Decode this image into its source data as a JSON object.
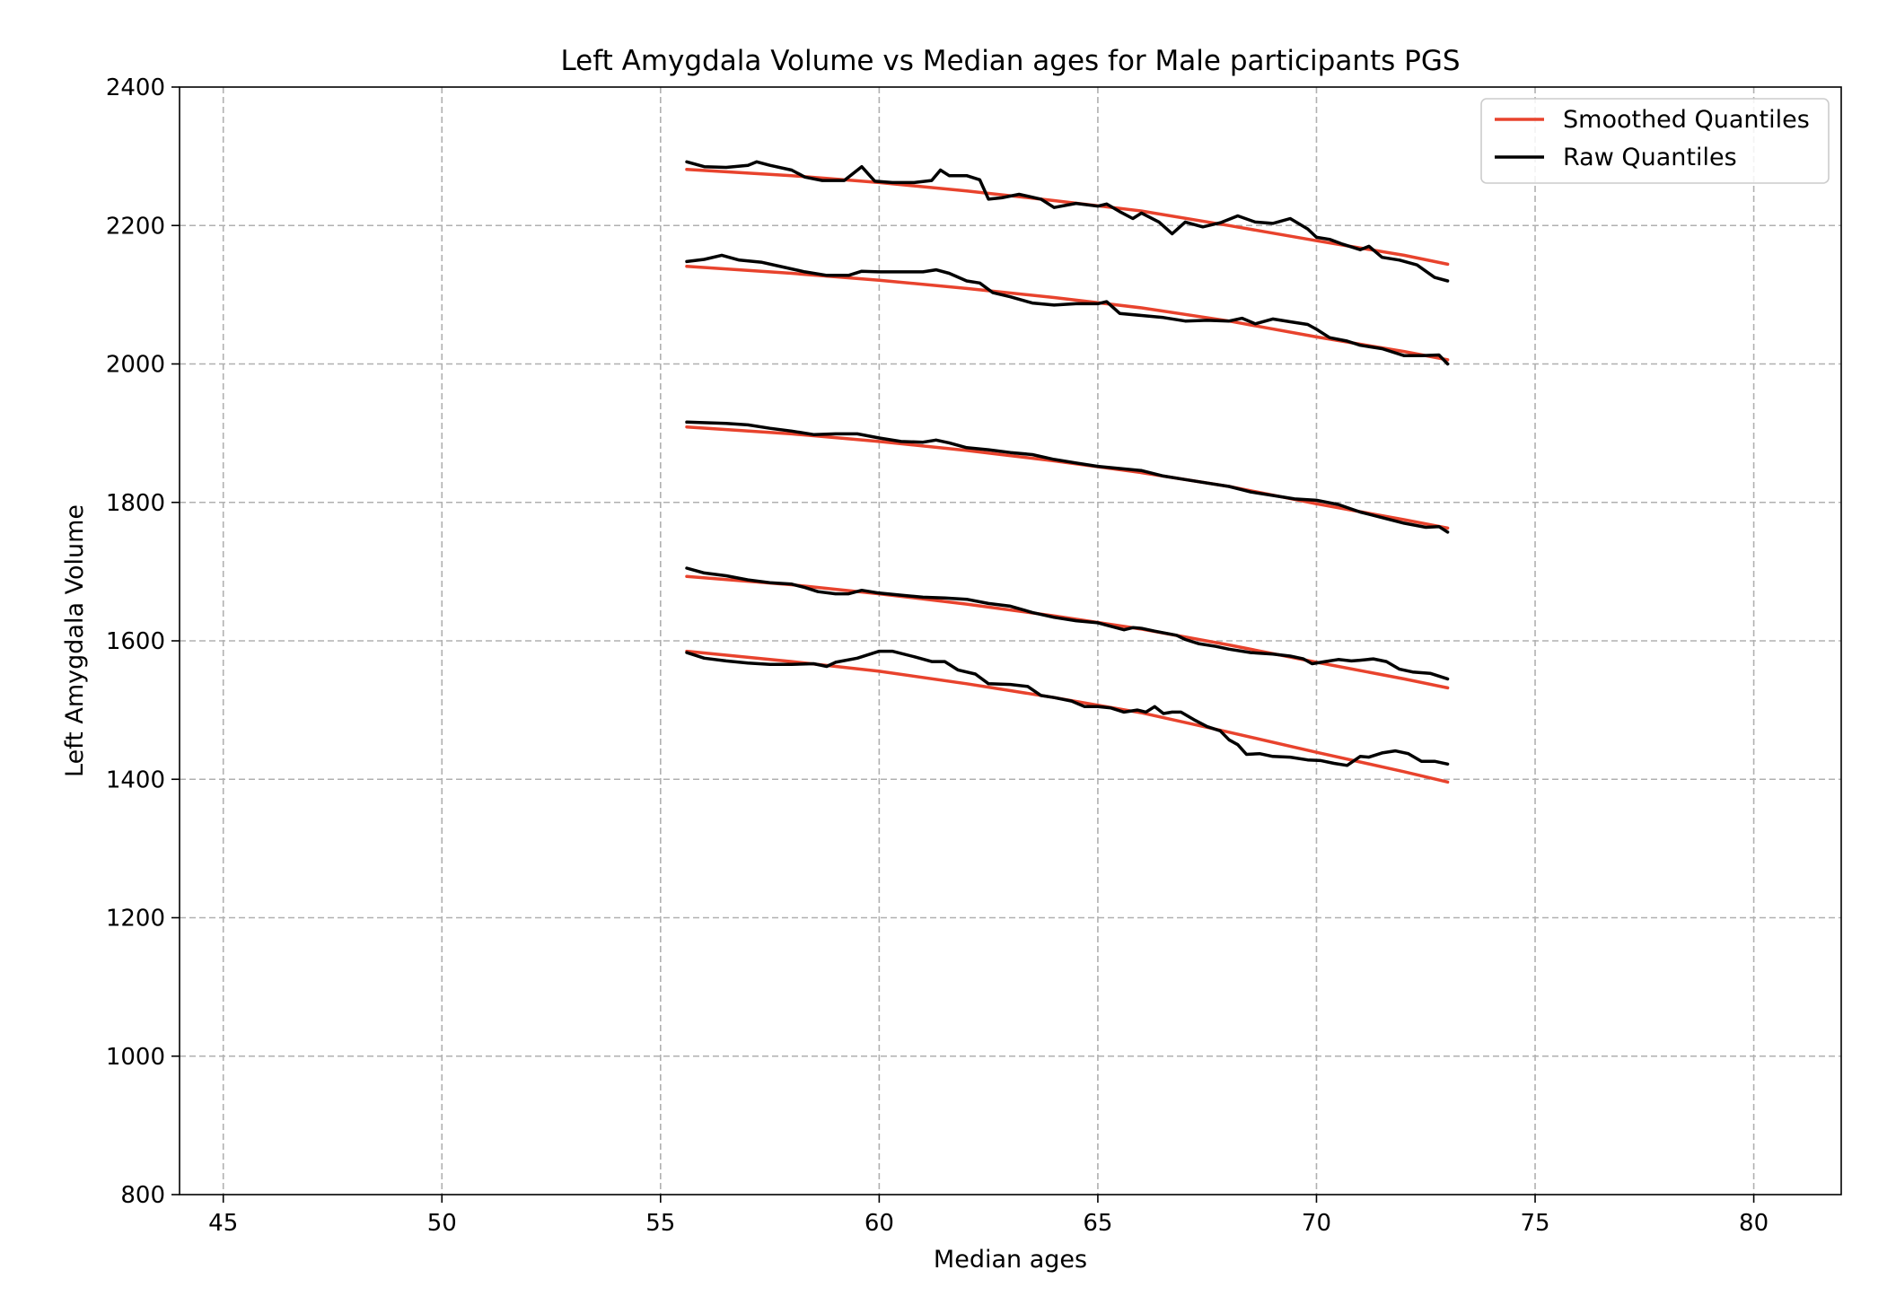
{
  "chart_data": {
    "type": "line",
    "title": "Left Amygdala Volume vs Median ages for Male participants  PGS",
    "xlabel": "Median ages",
    "ylabel": "Left Amygdala Volume",
    "xlim": [
      44,
      82
    ],
    "ylim": [
      800,
      2400
    ],
    "xticks": [
      45,
      50,
      55,
      60,
      65,
      70,
      75,
      80
    ],
    "yticks": [
      800,
      1000,
      1200,
      1400,
      1600,
      1800,
      2000,
      2200,
      2400
    ],
    "grid": true,
    "legend_position": "top-right",
    "legend": [
      {
        "label": "Smoothed Quantiles",
        "color": "#e8432d"
      },
      {
        "label": "Raw Quantiles",
        "color": "#000000"
      }
    ],
    "series": [
      {
        "group": "Smoothed Quantiles",
        "color": "#e8432d",
        "x": [
          55.6,
          58,
          60,
          62,
          64,
          66,
          68,
          70,
          72,
          73
        ],
        "y": [
          2281,
          2272,
          2262,
          2250,
          2236,
          2221,
          2200,
          2178,
          2157,
          2144
        ]
      },
      {
        "group": "Smoothed Quantiles",
        "color": "#e8432d",
        "x": [
          55.6,
          58,
          60,
          62,
          64,
          66,
          68,
          70,
          72,
          73
        ],
        "y": [
          2141,
          2131,
          2121,
          2109,
          2096,
          2081,
          2062,
          2039,
          2018,
          2006
        ]
      },
      {
        "group": "Smoothed Quantiles",
        "color": "#e8432d",
        "x": [
          55.6,
          58,
          60,
          62,
          64,
          66,
          68,
          70,
          72,
          73
        ],
        "y": [
          1909,
          1899,
          1888,
          1875,
          1860,
          1843,
          1823,
          1798,
          1775,
          1763
        ]
      },
      {
        "group": "Smoothed Quantiles",
        "color": "#e8432d",
        "x": [
          55.6,
          58,
          60,
          62,
          64,
          66,
          68,
          70,
          72,
          73
        ],
        "y": [
          1693,
          1681,
          1668,
          1653,
          1636,
          1617,
          1594,
          1569,
          1545,
          1532
        ]
      },
      {
        "group": "Smoothed Quantiles",
        "color": "#e8432d",
        "x": [
          55.6,
          58,
          60,
          62,
          64,
          66,
          68,
          70,
          72,
          73
        ],
        "y": [
          1585,
          1570,
          1556,
          1538,
          1518,
          1496,
          1468,
          1439,
          1411,
          1396
        ]
      },
      {
        "group": "Raw Quantiles",
        "color": "#000000",
        "x": [
          55.6,
          56,
          56.5,
          57,
          57.2,
          57.5,
          58,
          58.3,
          58.7,
          59.2,
          59.6,
          59.9,
          60.3,
          60.8,
          61.2,
          61.4,
          61.6,
          62,
          62.3,
          62.5,
          62.8,
          63.2,
          63.7,
          64,
          64.5,
          65,
          65.2,
          65.5,
          65.8,
          66,
          66.4,
          66.7,
          67,
          67.4,
          67.8,
          68.2,
          68.6,
          69,
          69.4,
          69.8,
          70,
          70.3,
          70.6,
          71,
          71.2,
          71.5,
          71.9,
          72.3,
          72.7,
          73
        ],
        "y": [
          2292,
          2285,
          2284,
          2287,
          2292,
          2287,
          2280,
          2270,
          2265,
          2265,
          2285,
          2264,
          2262,
          2262,
          2265,
          2280,
          2272,
          2272,
          2266,
          2238,
          2240,
          2245,
          2238,
          2226,
          2232,
          2228,
          2231,
          2220,
          2210,
          2218,
          2205,
          2188,
          2205,
          2198,
          2204,
          2214,
          2205,
          2203,
          2210,
          2195,
          2183,
          2180,
          2173,
          2165,
          2170,
          2154,
          2150,
          2143,
          2125,
          2120
        ]
      },
      {
        "group": "Raw Quantiles",
        "color": "#000000",
        "x": [
          55.6,
          56,
          56.4,
          56.8,
          57.3,
          57.8,
          58.3,
          58.8,
          59.3,
          59.6,
          60,
          60.5,
          61,
          61.3,
          61.6,
          62,
          62.3,
          62.6,
          63,
          63.5,
          64,
          64.5,
          65,
          65.2,
          65.5,
          66,
          66.5,
          67,
          67.5,
          68,
          68.3,
          68.6,
          69,
          69.4,
          69.8,
          70,
          70.3,
          70.7,
          71,
          71.5,
          72,
          72.4,
          72.8,
          73
        ],
        "y": [
          2148,
          2151,
          2157,
          2150,
          2147,
          2140,
          2133,
          2128,
          2128,
          2134,
          2133,
          2133,
          2133,
          2136,
          2131,
          2120,
          2117,
          2103,
          2097,
          2088,
          2085,
          2087,
          2087,
          2090,
          2073,
          2070,
          2067,
          2062,
          2063,
          2062,
          2066,
          2058,
          2065,
          2061,
          2057,
          2050,
          2038,
          2033,
          2027,
          2022,
          2012,
          2012,
          2013,
          2000
        ]
      },
      {
        "group": "Raw Quantiles",
        "color": "#000000",
        "x": [
          55.6,
          56.5,
          57,
          57.5,
          58,
          58.5,
          59,
          59.5,
          60,
          60.5,
          61,
          61.3,
          61.6,
          62,
          62.5,
          63,
          63.5,
          64,
          64.5,
          65,
          65.5,
          66,
          66.5,
          67,
          67.5,
          68,
          68.5,
          69,
          69.5,
          70,
          70.5,
          71,
          71.5,
          72,
          72.5,
          72.8,
          73
        ],
        "y": [
          1916,
          1914,
          1912,
          1907,
          1903,
          1898,
          1899,
          1899,
          1893,
          1888,
          1887,
          1890,
          1886,
          1879,
          1876,
          1872,
          1869,
          1862,
          1857,
          1852,
          1849,
          1846,
          1838,
          1833,
          1828,
          1823,
          1815,
          1810,
          1805,
          1803,
          1797,
          1786,
          1778,
          1770,
          1764,
          1765,
          1757
        ]
      },
      {
        "group": "Raw Quantiles",
        "color": "#000000",
        "x": [
          55.6,
          56,
          56.5,
          57,
          57.5,
          58,
          58.3,
          58.6,
          59,
          59.3,
          59.6,
          60,
          60.5,
          61,
          61.5,
          62,
          62.5,
          63,
          63.5,
          64,
          64.5,
          65,
          65.3,
          65.6,
          65.8,
          66,
          66.3,
          66.8,
          67,
          67.3,
          67.7,
          68,
          68.5,
          69,
          69.4,
          69.7,
          69.9,
          70.2,
          70.5,
          70.8,
          71,
          71.3,
          71.6,
          71.9,
          72.2,
          72.6,
          73
        ],
        "y": [
          1705,
          1698,
          1694,
          1688,
          1684,
          1682,
          1677,
          1671,
          1668,
          1668,
          1673,
          1669,
          1666,
          1663,
          1662,
          1660,
          1654,
          1650,
          1641,
          1634,
          1629,
          1626,
          1621,
          1616,
          1619,
          1618,
          1614,
          1608,
          1602,
          1596,
          1592,
          1588,
          1583,
          1581,
          1578,
          1574,
          1567,
          1570,
          1573,
          1571,
          1572,
          1574,
          1570,
          1559,
          1555,
          1553,
          1545
        ]
      },
      {
        "group": "Raw Quantiles",
        "color": "#000000",
        "x": [
          55.6,
          56,
          56.5,
          57,
          57.5,
          58,
          58.5,
          58.8,
          59,
          59.5,
          60,
          60.3,
          60.8,
          61.2,
          61.5,
          61.8,
          62.2,
          62.5,
          63,
          63.4,
          63.7,
          64,
          64.4,
          64.7,
          65,
          65.3,
          65.6,
          65.9,
          66.1,
          66.3,
          66.5,
          66.7,
          66.9,
          67.2,
          67.5,
          67.8,
          68,
          68.2,
          68.4,
          68.7,
          69,
          69.4,
          69.8,
          70.1,
          70.4,
          70.7,
          71,
          71.2,
          71.5,
          71.8,
          72.1,
          72.4,
          72.7,
          73
        ],
        "y": [
          1583,
          1575,
          1571,
          1568,
          1566,
          1566,
          1567,
          1563,
          1569,
          1575,
          1585,
          1585,
          1577,
          1570,
          1570,
          1558,
          1552,
          1538,
          1537,
          1534,
          1521,
          1518,
          1513,
          1505,
          1505,
          1503,
          1497,
          1500,
          1497,
          1505,
          1495,
          1497,
          1497,
          1486,
          1476,
          1470,
          1457,
          1450,
          1436,
          1437,
          1433,
          1432,
          1428,
          1427,
          1423,
          1420,
          1433,
          1432,
          1438,
          1441,
          1437,
          1426,
          1426,
          1422
        ]
      }
    ]
  }
}
